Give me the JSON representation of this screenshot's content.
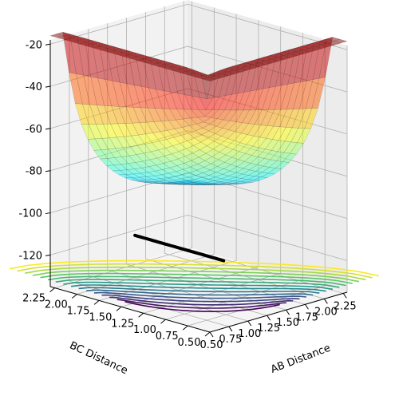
{
  "chart_data": {
    "type": "surface-3d",
    "title": "",
    "xlabel": "AB Distance",
    "ylabel": "BC Distance",
    "zlabel": "",
    "x_ticks": [
      "0.50",
      "0.75",
      "1.00",
      "1.25",
      "1.50",
      "1.75",
      "2.00",
      "2.25"
    ],
    "y_ticks": [
      "0.50",
      "0.75",
      "1.00",
      "1.25",
      "1.50",
      "1.75",
      "2.00",
      "2.25"
    ],
    "z_ticks": [
      "-20",
      "-40",
      "-60",
      "-80",
      "-100",
      "-120"
    ],
    "xlim": [
      0.5,
      2.3
    ],
    "ylim": [
      0.5,
      2.3
    ],
    "zlim": [
      -135,
      -18
    ],
    "grid": true,
    "surface_colormap": "jet",
    "contour_colormap": "viridis",
    "surface_alpha": 0.5,
    "surface_peak_z": -40,
    "valley_floor_z": -105,
    "trajectory_color": "#000000",
    "background_color": "#ffffff",
    "pane_color": "#f2f2f2",
    "grid_color": "#b0b0b0"
  }
}
